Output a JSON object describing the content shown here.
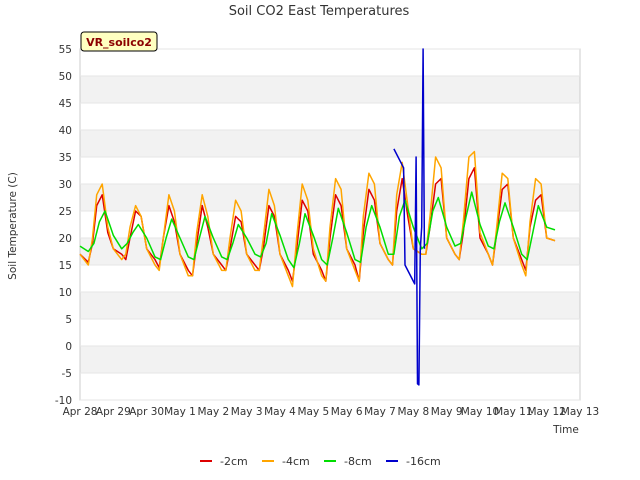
{
  "chart_data": {
    "type": "line",
    "title": "Soil CO2 East Temperatures",
    "xlabel": "Time",
    "ylabel": "Soil Temperature (C)",
    "site_label": "VR_soilco2",
    "ylim": [
      -10,
      55
    ],
    "yticks": [
      -10,
      -5,
      0,
      5,
      10,
      15,
      20,
      25,
      30,
      35,
      40,
      45,
      50,
      55
    ],
    "xlim": [
      "2024-04-28",
      "2024-05-13"
    ],
    "xtick_labels": [
      "Apr 28",
      "Apr 29",
      "Apr 30",
      "May 1",
      "May 2",
      "May 3",
      "May 4",
      "May 5",
      "May 6",
      "May 7",
      "May 8",
      "May 9",
      "May 10",
      "May 11",
      "May 12",
      "May 13"
    ],
    "grid": "horizontal bands",
    "legend_position": "bottom-center",
    "series": [
      {
        "name": "-2cm",
        "color": "#dd0000",
        "x": [
          "04-28 00:00",
          "04-28 06:00",
          "04-28 09:00",
          "04-28 12:00",
          "04-28 16:00",
          "04-28 20:00",
          "04-29 00:00",
          "04-29 06:00",
          "04-29 09:00",
          "04-29 12:00",
          "04-29 16:00",
          "04-29 20:00",
          "04-30 00:00",
          "04-30 06:00",
          "04-30 09:00",
          "04-30 12:00",
          "04-30 16:00",
          "04-30 20:00",
          "05-01 00:00",
          "05-01 06:00",
          "05-01 09:00",
          "05-01 12:00",
          "05-01 16:00",
          "05-01 20:00",
          "05-02 00:00",
          "05-02 06:00",
          "05-02 09:00",
          "05-02 12:00",
          "05-02 16:00",
          "05-02 20:00",
          "05-03 00:00",
          "05-03 06:00",
          "05-03 09:00",
          "05-03 12:00",
          "05-03 16:00",
          "05-03 20:00",
          "05-04 00:00",
          "05-04 06:00",
          "05-04 09:00",
          "05-04 12:00",
          "05-04 16:00",
          "05-04 20:00",
          "05-05 00:00",
          "05-05 06:00",
          "05-05 09:00",
          "05-05 12:00",
          "05-05 16:00",
          "05-05 20:00",
          "05-06 00:00",
          "05-06 06:00",
          "05-06 09:00",
          "05-06 12:00",
          "05-06 16:00",
          "05-06 20:00",
          "05-07 00:00",
          "05-07 06:00",
          "05-07 09:00",
          "05-07 12:00",
          "05-07 16:00",
          "05-07 20:00",
          "05-08 00:00",
          "05-08 06:00",
          "05-08 09:00",
          "05-08 12:00",
          "05-08 16:00",
          "05-08 20:00",
          "05-09 00:00",
          "05-09 06:00",
          "05-09 09:00",
          "05-09 12:00",
          "05-09 16:00",
          "05-09 20:00",
          "05-10 00:00",
          "05-10 06:00",
          "05-10 09:00",
          "05-10 12:00",
          "05-10 16:00",
          "05-10 20:00",
          "05-11 00:00",
          "05-11 06:00",
          "05-11 09:00",
          "05-11 12:00",
          "05-11 16:00",
          "05-11 20:00",
          "05-12 00:00",
          "05-12 06:00"
        ],
        "values": [
          17,
          15.5,
          19,
          26,
          28,
          21,
          18,
          17,
          16,
          20,
          25,
          24,
          18,
          16,
          14.5,
          20,
          26,
          23,
          17,
          14,
          13,
          19,
          26,
          22,
          17,
          15,
          14,
          18,
          24,
          23,
          17,
          15,
          14,
          18,
          26,
          24,
          17,
          14,
          12,
          18,
          27,
          25,
          17,
          14,
          12,
          20,
          28,
          26,
          18,
          15,
          12,
          21,
          29,
          27,
          19,
          16,
          15,
          25,
          31,
          24,
          18,
          17,
          17,
          22,
          30,
          31,
          20,
          17,
          16,
          21,
          31,
          33,
          20,
          17,
          15,
          21,
          29,
          30,
          20,
          16,
          14,
          22,
          27,
          28,
          20,
          19.5
        ]
      },
      {
        "name": "-4cm",
        "color": "#ffa500",
        "x": [
          "04-28 00:00",
          "04-28 06:00",
          "04-28 09:00",
          "04-28 12:00",
          "04-28 16:00",
          "04-28 20:00",
          "04-29 00:00",
          "04-29 06:00",
          "04-29 09:00",
          "04-29 12:00",
          "04-29 16:00",
          "04-29 20:00",
          "04-30 00:00",
          "04-30 06:00",
          "04-30 09:00",
          "04-30 12:00",
          "04-30 16:00",
          "04-30 20:00",
          "05-01 00:00",
          "05-01 06:00",
          "05-01 09:00",
          "05-01 12:00",
          "05-01 16:00",
          "05-01 20:00",
          "05-02 00:00",
          "05-02 06:00",
          "05-02 09:00",
          "05-02 12:00",
          "05-02 16:00",
          "05-02 20:00",
          "05-03 00:00",
          "05-03 06:00",
          "05-03 09:00",
          "05-03 12:00",
          "05-03 16:00",
          "05-03 20:00",
          "05-04 00:00",
          "05-04 06:00",
          "05-04 09:00",
          "05-04 12:00",
          "05-04 16:00",
          "05-04 20:00",
          "05-05 00:00",
          "05-05 06:00",
          "05-05 09:00",
          "05-05 12:00",
          "05-05 16:00",
          "05-05 20:00",
          "05-06 00:00",
          "05-06 06:00",
          "05-06 09:00",
          "05-06 12:00",
          "05-06 16:00",
          "05-06 20:00",
          "05-07 00:00",
          "05-07 06:00",
          "05-07 09:00",
          "05-07 12:00",
          "05-07 16:00",
          "05-07 20:00",
          "05-08 00:00",
          "05-08 06:00",
          "05-08 09:00",
          "05-08 12:00",
          "05-08 16:00",
          "05-08 20:00",
          "05-09 00:00",
          "05-09 06:00",
          "05-09 09:00",
          "05-09 12:00",
          "05-09 16:00",
          "05-09 20:00",
          "05-10 00:00",
          "05-10 06:00",
          "05-10 09:00",
          "05-10 12:00",
          "05-10 16:00",
          "05-10 20:00",
          "05-11 00:00",
          "05-11 06:00",
          "05-11 09:00",
          "05-11 12:00",
          "05-11 16:00",
          "05-11 20:00",
          "05-12 00:00",
          "05-12 06:00"
        ],
        "values": [
          17,
          15,
          20,
          28,
          30,
          22,
          18,
          16,
          17,
          22,
          26,
          24,
          18,
          15,
          14,
          20,
          28,
          25,
          17,
          13,
          13,
          21,
          28,
          24,
          17,
          14,
          14,
          20,
          27,
          25,
          17,
          14,
          14,
          20,
          29,
          26,
          17,
          13,
          11,
          20,
          30,
          27,
          18,
          13,
          12,
          22,
          31,
          29,
          18,
          14,
          12,
          24,
          32,
          30,
          19,
          16,
          15,
          28,
          34,
          26,
          18,
          17,
          17,
          24,
          35,
          33,
          20,
          17,
          16,
          23,
          35,
          36,
          21,
          17,
          15,
          22,
          32,
          31,
          20,
          15,
          13,
          23,
          31,
          30,
          20,
          19.5
        ]
      },
      {
        "name": "-8cm",
        "color": "#00dd00",
        "x": [
          "04-28 00:00",
          "04-28 06:00",
          "04-28 10:00",
          "04-28 14:00",
          "04-28 18:00",
          "04-29 00:00",
          "04-29 06:00",
          "04-29 10:00",
          "04-29 14:00",
          "04-29 18:00",
          "04-30 00:00",
          "04-30 06:00",
          "04-30 10:00",
          "04-30 14:00",
          "04-30 18:00",
          "05-01 00:00",
          "05-01 06:00",
          "05-01 10:00",
          "05-01 14:00",
          "05-01 18:00",
          "05-02 00:00",
          "05-02 06:00",
          "05-02 10:00",
          "05-02 14:00",
          "05-02 18:00",
          "05-03 00:00",
          "05-03 06:00",
          "05-03 10:00",
          "05-03 14:00",
          "05-03 18:00",
          "05-04 00:00",
          "05-04 06:00",
          "05-04 10:00",
          "05-04 14:00",
          "05-04 18:00",
          "05-05 00:00",
          "05-05 06:00",
          "05-05 10:00",
          "05-05 14:00",
          "05-05 18:00",
          "05-06 00:00",
          "05-06 06:00",
          "05-06 10:00",
          "05-06 14:00",
          "05-06 18:00",
          "05-07 00:00",
          "05-07 06:00",
          "05-07 10:00",
          "05-07 14:00",
          "05-07 18:00",
          "05-08 00:00",
          "05-08 06:00",
          "05-08 10:00",
          "05-08 14:00",
          "05-08 18:00",
          "05-09 00:00",
          "05-09 06:00",
          "05-09 10:00",
          "05-09 14:00",
          "05-09 18:00",
          "05-10 00:00",
          "05-10 06:00",
          "05-10 10:00",
          "05-10 14:00",
          "05-10 18:00",
          "05-11 00:00",
          "05-11 06:00",
          "05-11 10:00",
          "05-11 14:00",
          "05-11 18:00",
          "05-12 00:00",
          "05-12 06:00"
        ],
        "values": [
          18.5,
          17.5,
          19,
          23,
          25,
          20.5,
          18,
          19,
          21,
          22.5,
          20,
          16.5,
          16,
          20,
          23.5,
          20,
          16.5,
          16,
          20,
          24,
          20,
          16.5,
          16,
          19,
          22.5,
          20,
          17,
          16.5,
          19,
          24.5,
          20.5,
          16,
          14.5,
          19,
          24.5,
          20.5,
          16,
          15,
          20,
          25.5,
          21,
          16,
          15.5,
          22,
          26,
          22,
          17,
          17,
          24,
          27,
          22,
          18,
          19,
          25,
          27.5,
          22,
          18.5,
          19,
          24,
          28.5,
          22.5,
          18.5,
          18,
          23,
          26.5,
          22,
          17,
          16,
          21,
          26,
          22,
          21.5
        ]
      },
      {
        "name": "-16cm",
        "color": "#0000cc",
        "x": [
          "05-07 10:00",
          "05-07 17:00",
          "05-07 18:00",
          "05-08 01:00",
          "05-08 02:00",
          "05-08 03:00",
          "05-08 04:00",
          "05-08 05:00",
          "05-08 06:00",
          "05-08 07:00",
          "05-08 08:00"
        ],
        "values": [
          36.5,
          33,
          15,
          11.5,
          35,
          -7,
          -7.2,
          18,
          22,
          55,
          18
        ]
      }
    ]
  }
}
